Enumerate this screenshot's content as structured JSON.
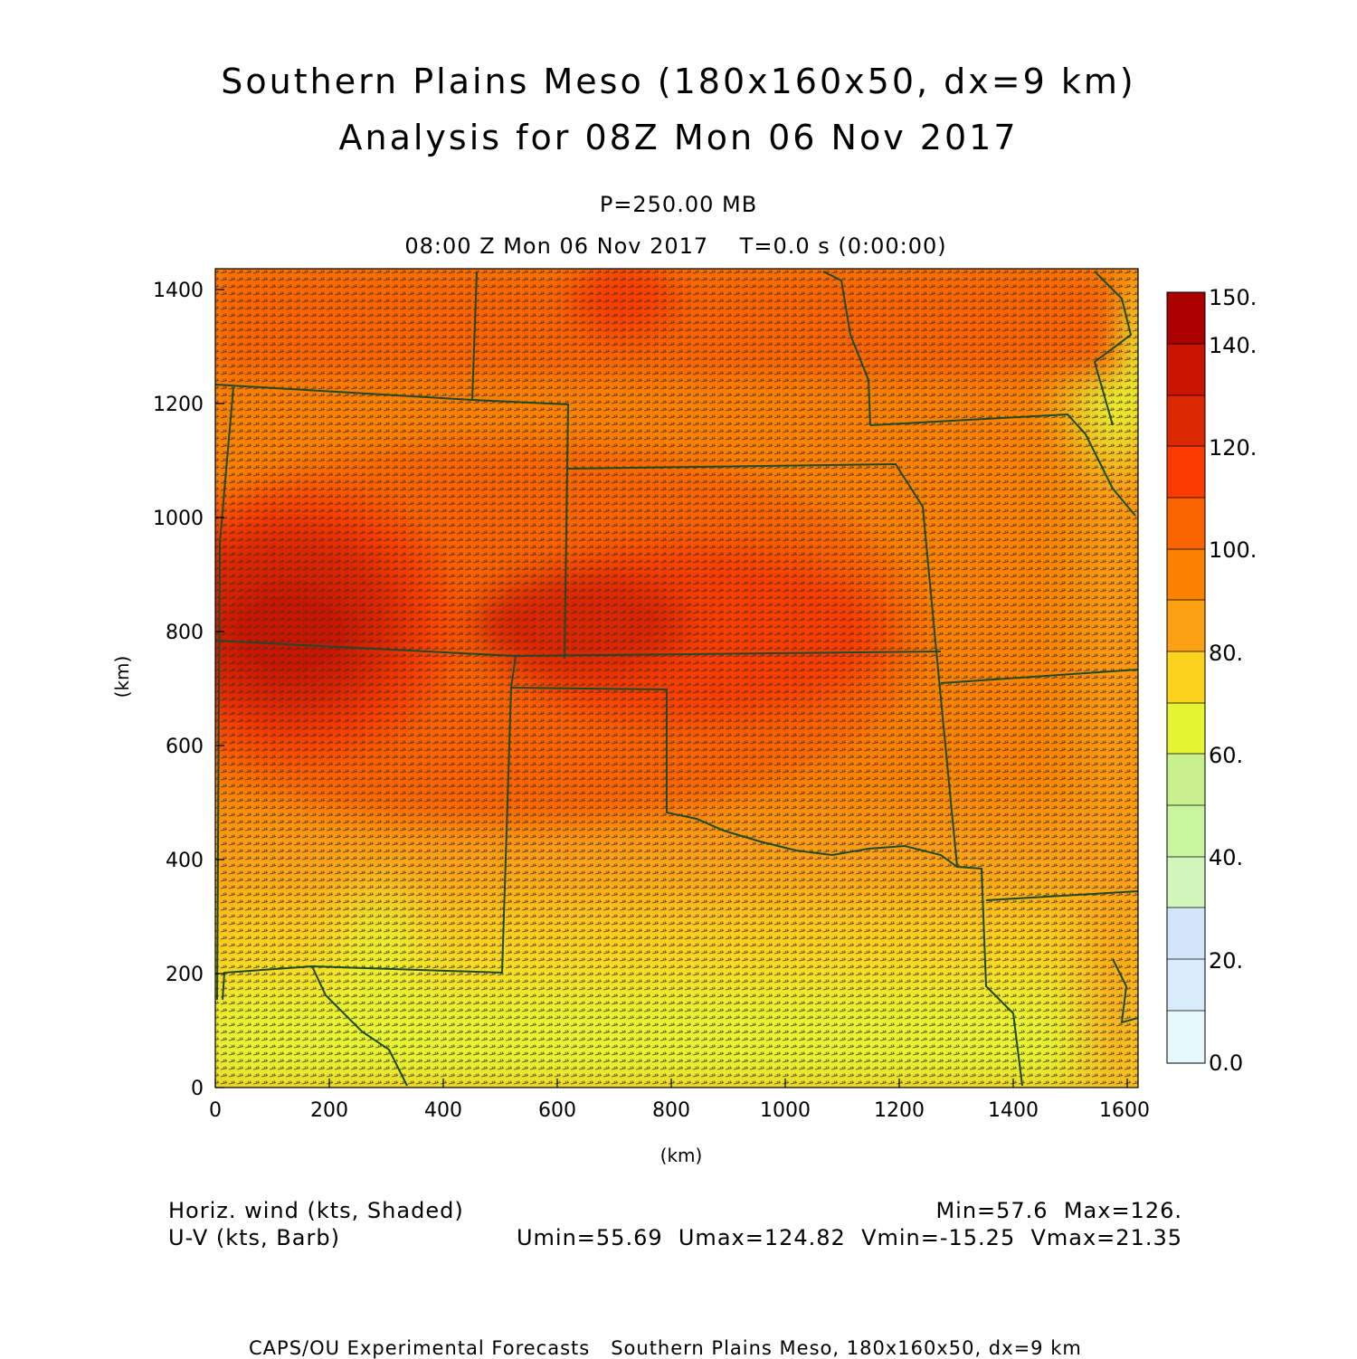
{
  "title_line1": "Southern Plains Meso (180x160x50, dx=9 km)",
  "title_line2": "Analysis for 08Z Mon 06 Nov 2017",
  "level_label": "P=250.00 MB",
  "time_label": "08:00 Z Mon 06 Nov 2017    T=0.0 s (0:00:00)",
  "axes": {
    "x_label": "(km)",
    "y_label": "(km)",
    "x_ticks": [
      "0",
      "200",
      "400",
      "600",
      "800",
      "1000",
      "1200",
      "1400",
      "1600"
    ],
    "y_ticks": [
      "0",
      "200",
      "400",
      "600",
      "800",
      "1000",
      "1200",
      "1400"
    ]
  },
  "colorbar": {
    "labels": [
      "150.",
      "140.",
      "120.",
      "100.",
      "80.",
      "60.",
      "40.",
      "20.",
      "0.0"
    ],
    "colors": [
      "#aa0000",
      "#c81400",
      "#dc2800",
      "#fa3c00",
      "#fa6400",
      "#fa8200",
      "#fca014",
      "#fcd21e",
      "#e6f532",
      "#c8f08c",
      "#c8f5a0",
      "#d2f5be",
      "#d2e6fa",
      "#d7ebfc",
      "#dcf0fc",
      "#e6f8fc"
    ]
  },
  "legend": {
    "left_line1": "Horiz. wind (kts, Shaded)",
    "left_line2": "U-V (kts, Barb)",
    "right_line1": "Min=57.6  Max=126.",
    "right_line2": "Umin=55.69  Umax=124.82  Vmin=-15.25  Vmax=21.35"
  },
  "footer": "CAPS/OU Experimental Forecasts   Southern Plains Meso, 180x160x50, dx=9 km"
}
